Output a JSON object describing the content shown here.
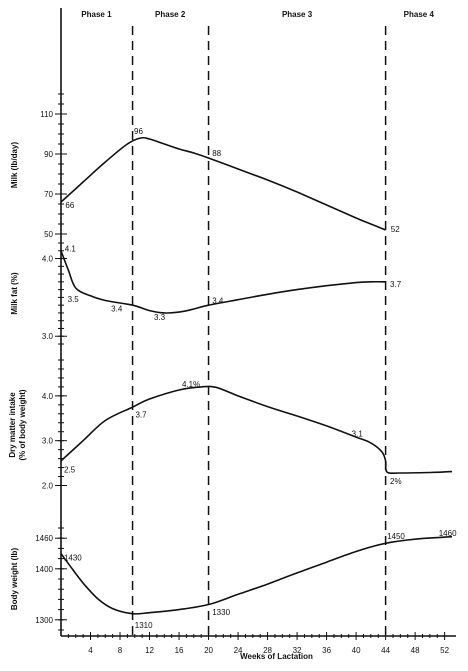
{
  "chart_data": {
    "type": "line",
    "xlabel": "Weeks of Lactation",
    "x_ticks": [
      4,
      8,
      12,
      16,
      20,
      24,
      28,
      32,
      36,
      40,
      44,
      48,
      52
    ],
    "xlim": [
      0,
      53
    ],
    "phase_boundaries": [
      9.7,
      20,
      44
    ],
    "phases": [
      {
        "label": "Phase 1",
        "x_center": 4.8
      },
      {
        "label": "Phase 2",
        "x_center": 14.8
      },
      {
        "label": "Phase 3",
        "x_center": 32
      },
      {
        "label": "Phase 4",
        "x_center": 48.5
      }
    ],
    "panels": [
      {
        "key": "milk",
        "ylabel": "Milk (lb/day)",
        "y_ticks": [
          50,
          70,
          90,
          110
        ],
        "y_tick_labels": [
          "50",
          "70",
          "90",
          "110"
        ],
        "ylim": [
          47,
          122
        ],
        "y_tick_minor": 5,
        "series": [
          {
            "x": [
              0,
              3,
              6,
              9,
              10.8,
              12,
              14,
              16,
              18,
              20,
              24,
              28,
              32,
              36,
              40,
              42,
              44
            ],
            "y": [
              66,
              76,
              86,
              95,
              98,
              97.5,
              95,
              92.5,
              90.5,
              88,
              82.5,
              77,
              71,
              64.5,
              58,
              55,
              52
            ]
          }
        ],
        "annotations": [
          {
            "text": "66",
            "x": 0.6,
            "y": 64.5
          },
          {
            "text": "96",
            "x": 9.9,
            "y": 101.5
          },
          {
            "text": "88",
            "x": 20.5,
            "y": 90.5
          },
          {
            "text": "52",
            "x": 44.7,
            "y": 52.5
          }
        ]
      },
      {
        "key": "fat",
        "ylabel": "Milk fat (%)",
        "y_ticks": [
          3.0,
          4.0
        ],
        "y_tick_labels": [
          "3.0",
          "4.0"
        ],
        "ylim": [
          2.9,
          4.2
        ],
        "y_tick_minor": 0.1,
        "series": [
          {
            "x": [
              0,
              1,
              2,
              4,
              6,
              9.7,
              12,
              14,
              16,
              18,
              20,
              24,
              28,
              32,
              36,
              40,
              42,
              44
            ],
            "y": [
              4.1,
              3.85,
              3.62,
              3.52,
              3.46,
              3.4,
              3.33,
              3.3,
              3.31,
              3.35,
              3.4,
              3.47,
              3.54,
              3.6,
              3.65,
              3.69,
              3.7,
              3.7
            ]
          }
        ],
        "annotations": [
          {
            "text": "4.1",
            "x": 0.5,
            "y": 4.13
          },
          {
            "text": "3.5",
            "x": 0.9,
            "y": 3.48
          },
          {
            "text": "3.4",
            "x": 6.8,
            "y": 3.36
          },
          {
            "text": "3.3",
            "x": 12.6,
            "y": 3.25
          },
          {
            "text": "3.4",
            "x": 20.5,
            "y": 3.46
          },
          {
            "text": "3.7",
            "x": 44.6,
            "y": 3.67
          }
        ]
      },
      {
        "key": "dmi",
        "ylabel": "Dry matter intake (% of body weight)",
        "ylabel_lines": [
          "Dry matter intake",
          "(% of body weight)"
        ],
        "y_ticks": [
          2.0,
          3.0,
          4.0
        ],
        "y_tick_labels": [
          "2.0",
          "3.0",
          "4.0"
        ],
        "ylim": [
          1.9,
          4.8
        ],
        "y_tick_minor": 0.2,
        "series": [
          {
            "x": [
              0,
              3,
              6,
              9.7,
              12,
              16,
              19,
              21,
              24,
              28,
              32,
              36,
              40,
              42,
              43.5,
              44,
              44.2,
              46,
              50,
              53
            ],
            "y": [
              2.55,
              3.0,
              3.45,
              3.75,
              3.93,
              4.13,
              4.2,
              4.19,
              4.0,
              3.76,
              3.55,
              3.33,
              3.08,
              2.95,
              2.75,
              2.55,
              2.3,
              2.28,
              2.29,
              2.31
            ]
          }
        ],
        "annotations": [
          {
            "text": "2.5",
            "x": 0.4,
            "y": 2.36
          },
          {
            "text": "3.7",
            "x": 10.1,
            "y": 3.58
          },
          {
            "text": "4.1%",
            "x": 16.4,
            "y": 4.27
          },
          {
            "text": "3.1",
            "x": 39.4,
            "y": 3.16
          },
          {
            "text": "2%",
            "x": 44.6,
            "y": 2.1
          }
        ]
      },
      {
        "key": "bw",
        "ylabel": "Body weight (lb)",
        "y_ticks": [
          1300,
          1400,
          1460
        ],
        "y_tick_labels": [
          "1300",
          "1400",
          "1460"
        ],
        "ylim": [
          1280,
          1480
        ],
        "y_tick_minor": 20,
        "series": [
          {
            "x": [
              0,
              1,
              3,
              5,
              7,
              9.7,
              12,
              16,
              20,
              24,
              28,
              32,
              36,
              40,
              44,
              48,
              53
            ],
            "y": [
              1430,
              1410,
              1372,
              1341,
              1322,
              1312,
              1314,
              1320,
              1330,
              1350,
              1370,
              1392,
              1413,
              1434,
              1450,
              1458,
              1463
            ]
          }
        ],
        "annotations": [
          {
            "text": "1430",
            "x": 0.4,
            "y": 1422
          },
          {
            "text": "1310",
            "x": 10.0,
            "y": 1290
          },
          {
            "text": "1330",
            "x": 20.5,
            "y": 1315
          },
          {
            "text": "1450",
            "x": 44.2,
            "y": 1464
          },
          {
            "text": "1460",
            "x": 51.2,
            "y": 1470
          }
        ]
      }
    ]
  }
}
